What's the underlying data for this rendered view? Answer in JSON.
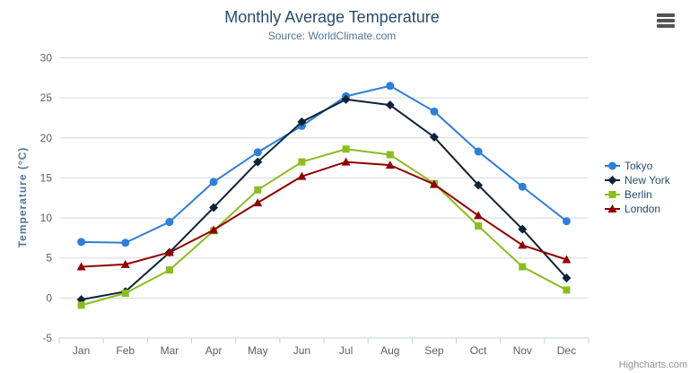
{
  "header": {
    "title": "Monthly Average Temperature",
    "subtitle": "Source: WorldClimate.com"
  },
  "credits": "Highcharts.com",
  "export_menu": {
    "icon": "hamburger-menu-icon"
  },
  "theme": {
    "title_color": "#274b6d",
    "subtitle_color": "#4d759e",
    "axis_title_color": "#4d759e",
    "axis_label_color": "#606060",
    "legend_text_color": "#274b6d",
    "grid_color": "#d8d8d8",
    "axis_line_color": "#c0d0e0",
    "credits_color": "#909090",
    "background": "#ffffff"
  },
  "chart_data": {
    "type": "line",
    "title": "Monthly Average Temperature",
    "subtitle": "Source: WorldClimate.com",
    "xlabel": "",
    "ylabel": "Temperature (°C)",
    "ylim": [
      -5,
      30
    ],
    "yticks": [
      -5,
      0,
      5,
      10,
      15,
      20,
      25,
      30
    ],
    "grid": true,
    "legend_position": "right",
    "categories": [
      "Jan",
      "Feb",
      "Mar",
      "Apr",
      "May",
      "Jun",
      "Jul",
      "Aug",
      "Sep",
      "Oct",
      "Nov",
      "Dec"
    ],
    "series": [
      {
        "name": "Tokyo",
        "color": "#2f7ed8",
        "marker": "circle",
        "values": [
          7.0,
          6.9,
          9.5,
          14.5,
          18.2,
          21.5,
          25.2,
          26.5,
          23.3,
          18.3,
          13.9,
          9.6
        ]
      },
      {
        "name": "New York",
        "color": "#0d233a",
        "marker": "diamond",
        "values": [
          -0.2,
          0.8,
          5.7,
          11.3,
          17.0,
          22.0,
          24.8,
          24.1,
          20.1,
          14.1,
          8.6,
          2.5
        ]
      },
      {
        "name": "Berlin",
        "color": "#8bbc21",
        "marker": "square",
        "values": [
          -0.9,
          0.6,
          3.5,
          8.4,
          13.5,
          17.0,
          18.6,
          17.9,
          14.3,
          9.0,
          3.9,
          1.0
        ]
      },
      {
        "name": "London",
        "color": "#910000",
        "marker": "triangle",
        "values": [
          3.9,
          4.2,
          5.7,
          8.5,
          11.9,
          15.2,
          17.0,
          16.6,
          14.2,
          10.3,
          6.6,
          4.8
        ]
      }
    ]
  }
}
